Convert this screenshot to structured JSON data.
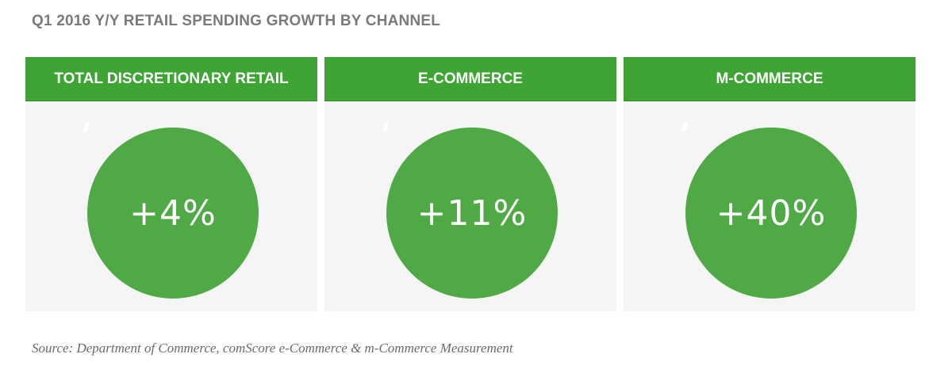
{
  "chart_data": {
    "type": "bubble-stat",
    "title": "Q1 2016 Y/Y RETAIL SPENDING GROWTH BY CHANNEL",
    "unit": "%",
    "categories": [
      "TOTAL DISCRETIONARY RETAIL",
      "E-COMMERCE",
      "M-COMMERCE"
    ],
    "values": [
      4,
      11,
      40
    ],
    "value_labels": [
      "+4%",
      "+11%",
      "+40%"
    ],
    "source": "Source: Department of Commerce, comScore e-Commerce & m-Commerce Measurement",
    "colors": {
      "header": "#3ea434",
      "bubble": "#4faa46",
      "panel": "#f5f5f5",
      "title": "#7a7a7a"
    }
  }
}
